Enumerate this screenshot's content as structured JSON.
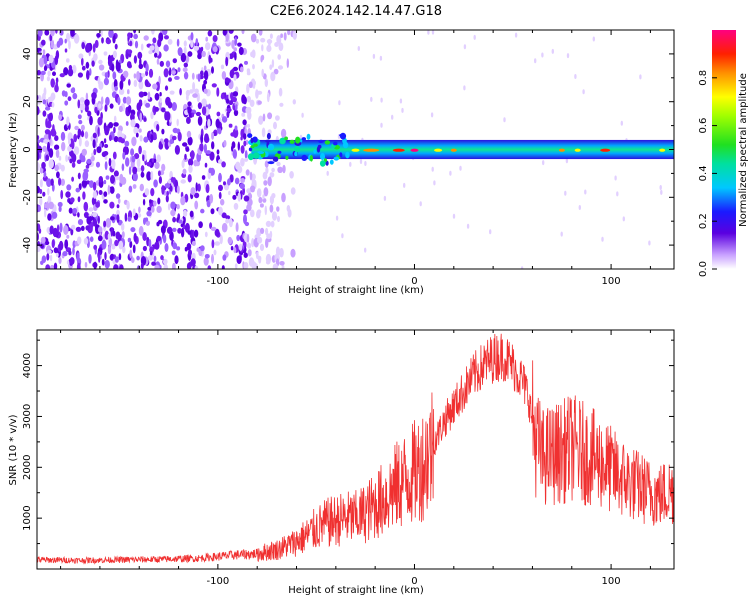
{
  "title": "C2E6.2024.142.14.47.G18",
  "colors": {
    "snr_line": "#f03030",
    "axis": "#000000"
  },
  "chart_data": [
    {
      "type": "heatmap",
      "panel": "spectrogram",
      "xlabel": "Height of straight line (km)",
      "ylabel": "Frequency (Hz)",
      "xlim": [
        -192,
        132
      ],
      "ylim": [
        -50,
        50
      ],
      "xticks": [
        -100,
        0,
        100
      ],
      "yticks": [
        -40,
        -20,
        0,
        20,
        40
      ],
      "grid": false,
      "colorbar": {
        "label": "Normalized spectral amplitude",
        "range": [
          0,
          1
        ],
        "ticks": [
          0.0,
          0.2,
          0.4,
          0.6,
          0.8
        ],
        "colormap": [
          "#ffffff",
          "#5a00c8",
          "#1a1aff",
          "#00d0ff",
          "#00e050",
          "#40ff00",
          "#ffff00",
          "#ff8000",
          "#ff0000",
          "#ff0080"
        ]
      },
      "description_values": {
        "noise_region_x": [
          -192,
          -65
        ],
        "signal_band_center_hz": 0,
        "signal_band_width_hz": 4,
        "peak_x": [
          -10,
          5
        ],
        "peak_amplitude": 1.0
      }
    },
    {
      "type": "line",
      "panel": "snr",
      "xlabel": "Height of straight line (km)",
      "ylabel": "SNR (10 * v/v)",
      "xlim": [
        -192,
        132
      ],
      "ylim": [
        0,
        4700
      ],
      "xticks": [
        -100,
        0,
        100
      ],
      "yticks": [
        1000,
        2000,
        3000,
        4000
      ],
      "grid": false,
      "series": [
        {
          "x": [
            -192,
            -170,
            -150,
            -130,
            -110,
            -90,
            -80,
            -70,
            -62,
            -55,
            -50,
            -45,
            -40,
            -35,
            -30,
            -25,
            -20,
            -15,
            -10,
            -5,
            0,
            5,
            10,
            15,
            20,
            25,
            30,
            35,
            40,
            45,
            50,
            55,
            58,
            60,
            62,
            65,
            70,
            75,
            80,
            85,
            90,
            95,
            100,
            105,
            110,
            115,
            120,
            125,
            130
          ],
          "values": [
            180,
            170,
            180,
            190,
            210,
            280,
            300,
            380,
            500,
            650,
            800,
            900,
            950,
            1000,
            1000,
            1100,
            1250,
            1400,
            1600,
            1750,
            1900,
            2100,
            2500,
            2900,
            3200,
            3500,
            3800,
            4000,
            4150,
            4200,
            4000,
            3700,
            3400,
            2900,
            2500,
            2200,
            2250,
            2300,
            2400,
            2300,
            2200,
            2100,
            1950,
            1800,
            1700,
            1600,
            1500,
            1450,
            1550
          ]
        }
      ]
    }
  ]
}
